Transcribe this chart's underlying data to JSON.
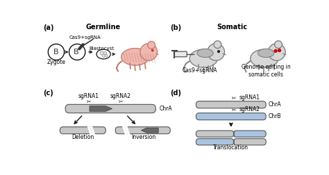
{
  "panel_a_label": "(a)",
  "panel_b_label": "(b)",
  "panel_c_label": "(c)",
  "panel_d_label": "(d)",
  "panel_a_title": "Germline",
  "panel_b_title": "Somatic",
  "panel_a_text1": "Cas9+sgRNA",
  "panel_a_text2": "Zygote",
  "panel_a_text3": "Blastocyst",
  "panel_b_text1": "Cas9+sgRNA",
  "panel_b_text2": "Genome editing in\nsomatic cells",
  "panel_c_text1": "sgRNA1",
  "panel_c_text2": "sgRNA2",
  "panel_c_text3": "ChrA",
  "panel_c_text4": "Deletion",
  "panel_c_text5": "Inversion",
  "panel_d_text1": "sgRNA1",
  "panel_d_text2": "ChrA",
  "panel_d_text3": "sgRNA2",
  "panel_d_text4": "ChrB",
  "panel_d_text5": "Translocation",
  "color_gray": "#c8c8c8",
  "color_lightgray": "#d8d8d8",
  "color_darkgray": "#686868",
  "color_blue": "#a8c4e0",
  "color_pink_fill": "#f0b8b0",
  "color_pink_edge": "#c07868",
  "color_white": "#ffffff",
  "color_black": "#111111",
  "bg_color": "#ffffff"
}
